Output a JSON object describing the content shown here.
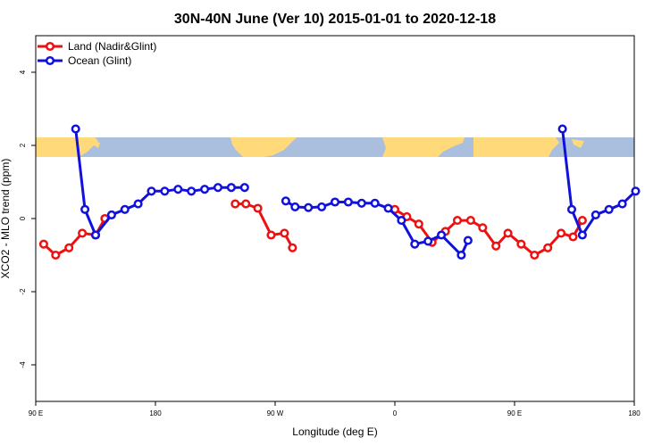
{
  "chart_data": {
    "type": "line",
    "title": "30N-40N June (Ver 10)   2015-01-01 to 2020-12-18",
    "xlabel": "Longitude (deg E)",
    "ylabel": "XCO2 - MLO trend (ppm)",
    "xlim": [
      90,
      540
    ],
    "ylim": [
      -5,
      5
    ],
    "x_ticks": [
      {
        "value": 90,
        "label": "90 E"
      },
      {
        "value": 180,
        "label": "180"
      },
      {
        "value": 270,
        "label": "90 W"
      },
      {
        "value": 360,
        "label": "0"
      },
      {
        "value": 450,
        "label": "90 E"
      },
      {
        "value": 540,
        "label": "180"
      }
    ],
    "y_ticks": [
      {
        "value": -4,
        "label": "-4"
      },
      {
        "value": -2,
        "label": "-2"
      },
      {
        "value": 0,
        "label": "0"
      },
      {
        "value": 2,
        "label": "2"
      },
      {
        "value": 4,
        "label": "4"
      }
    ],
    "grid": false,
    "legend_position": "top-left",
    "land_band": {
      "y_range": [
        1.72,
        2.28
      ],
      "ocean_color": "#A9BFDD",
      "land_color": "#FFD97A"
    },
    "series": [
      {
        "name": "Land (Nadir&Glint)",
        "color": "#EE1111",
        "segments": [
          [
            [
              96,
              -0.7
            ],
            [
              105,
              -1.0
            ],
            [
              115,
              -0.8
            ],
            [
              125,
              -0.4
            ],
            [
              135,
              -0.45
            ],
            [
              142,
              0.0
            ]
          ],
          [
            [
              240,
              0.4
            ],
            [
              248,
              0.4
            ],
            [
              257,
              0.28
            ],
            [
              267,
              -0.45
            ],
            [
              277,
              -0.4
            ],
            [
              283,
              -0.8
            ]
          ],
          [
            [
              360,
              0.25
            ],
            [
              369,
              0.05
            ],
            [
              378,
              -0.15
            ],
            [
              388,
              -0.65
            ],
            [
              398,
              -0.35
            ],
            [
              407,
              -0.05
            ],
            [
              417,
              -0.05
            ],
            [
              426,
              -0.25
            ],
            [
              436,
              -0.75
            ],
            [
              445,
              -0.4
            ],
            [
              455,
              -0.7
            ],
            [
              465,
              -1.0
            ],
            [
              475,
              -0.8
            ],
            [
              485,
              -0.4
            ],
            [
              494,
              -0.5
            ],
            [
              501,
              -0.05
            ]
          ]
        ]
      },
      {
        "name": "Ocean (Glint)",
        "color": "#1111DD",
        "segments": [
          [
            [
              120,
              2.45
            ],
            [
              127,
              0.25
            ],
            [
              135,
              -0.45
            ],
            [
              147,
              0.1
            ],
            [
              157,
              0.25
            ],
            [
              167,
              0.4
            ],
            [
              177,
              0.75
            ],
            [
              187,
              0.75
            ],
            [
              197,
              0.8
            ],
            [
              207,
              0.75
            ],
            [
              217,
              0.8
            ],
            [
              227,
              0.85
            ],
            [
              237,
              0.85
            ],
            [
              247,
              0.85
            ]
          ],
          [
            [
              278,
              0.48
            ],
            [
              285,
              0.32
            ],
            [
              295,
              0.3
            ],
            [
              305,
              0.32
            ],
            [
              315,
              0.45
            ],
            [
              325,
              0.45
            ],
            [
              335,
              0.42
            ],
            [
              345,
              0.42
            ],
            [
              355,
              0.28
            ],
            [
              365,
              -0.05
            ],
            [
              375,
              -0.7
            ],
            [
              385,
              -0.62
            ],
            [
              395,
              -0.45
            ],
            [
              410,
              -1.0
            ],
            [
              415,
              -0.6
            ]
          ],
          [
            [
              486,
              2.45
            ],
            [
              493,
              0.25
            ],
            [
              501,
              -0.45
            ],
            [
              511,
              0.1
            ],
            [
              521,
              0.25
            ],
            [
              531,
              0.4
            ],
            [
              541,
              0.75
            ]
          ]
        ]
      }
    ]
  }
}
